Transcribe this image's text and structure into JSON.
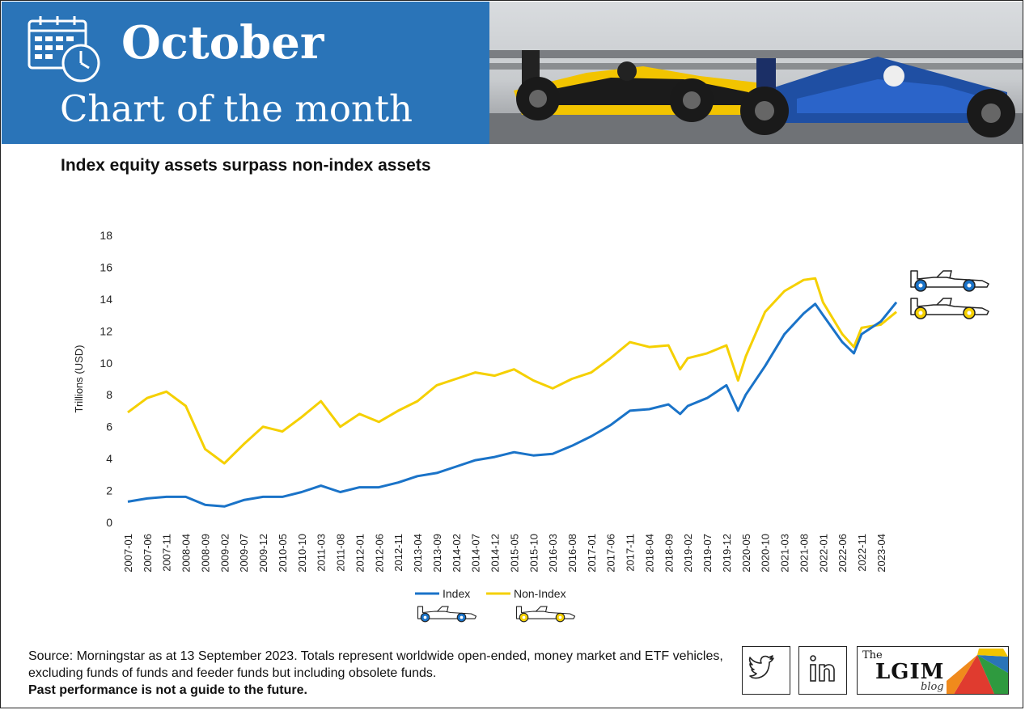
{
  "header": {
    "month": "October",
    "subtitle": "Chart of the month"
  },
  "chart_title": "Index equity assets surpass non-index assets",
  "chart_data": {
    "type": "line",
    "title": "Index equity assets surpass non-index assets",
    "xlabel": "",
    "ylabel": "Trillions (USD)",
    "ylim": [
      0,
      18
    ],
    "yticks": [
      0,
      2,
      4,
      6,
      8,
      10,
      12,
      14,
      16,
      18
    ],
    "x_start": "2007-01",
    "x_end": "2023-08",
    "xtick_labels": [
      "2007-01",
      "2007-06",
      "2007-11",
      "2008-04",
      "2008-09",
      "2009-02",
      "2009-07",
      "2009-12",
      "2010-05",
      "2010-10",
      "2011-03",
      "2011-08",
      "2012-01",
      "2012-06",
      "2012-11",
      "2013-04",
      "2013-09",
      "2014-02",
      "2014-07",
      "2014-12",
      "2015-05",
      "2015-10",
      "2016-03",
      "2016-08",
      "2017-01",
      "2017-06",
      "2017-11",
      "2018-04",
      "2018-09",
      "2019-02",
      "2019-07",
      "2019-12",
      "2020-05",
      "2020-10",
      "2021-03",
      "2021-08",
      "2022-01",
      "2022-06",
      "2022-11",
      "2023-04"
    ],
    "grid": false,
    "legend_position": "bottom",
    "series": [
      {
        "name": "Index",
        "color": "#1a73c8",
        "points": [
          [
            "2007-01",
            1.3
          ],
          [
            "2007-06",
            1.5
          ],
          [
            "2007-11",
            1.6
          ],
          [
            "2008-04",
            1.6
          ],
          [
            "2008-09",
            1.1
          ],
          [
            "2009-02",
            1.0
          ],
          [
            "2009-07",
            1.4
          ],
          [
            "2009-12",
            1.6
          ],
          [
            "2010-05",
            1.6
          ],
          [
            "2010-10",
            1.9
          ],
          [
            "2011-03",
            2.3
          ],
          [
            "2011-08",
            1.9
          ],
          [
            "2012-01",
            2.2
          ],
          [
            "2012-06",
            2.2
          ],
          [
            "2012-11",
            2.5
          ],
          [
            "2013-04",
            2.9
          ],
          [
            "2013-09",
            3.1
          ],
          [
            "2014-02",
            3.5
          ],
          [
            "2014-07",
            3.9
          ],
          [
            "2014-12",
            4.1
          ],
          [
            "2015-05",
            4.4
          ],
          [
            "2015-10",
            4.2
          ],
          [
            "2016-03",
            4.3
          ],
          [
            "2016-08",
            4.8
          ],
          [
            "2017-01",
            5.4
          ],
          [
            "2017-06",
            6.1
          ],
          [
            "2017-11",
            7.0
          ],
          [
            "2018-04",
            7.1
          ],
          [
            "2018-09",
            7.4
          ],
          [
            "2018-12",
            6.8
          ],
          [
            "2019-02",
            7.3
          ],
          [
            "2019-07",
            7.8
          ],
          [
            "2019-12",
            8.6
          ],
          [
            "2020-03",
            7.0
          ],
          [
            "2020-05",
            8.0
          ],
          [
            "2020-10",
            9.8
          ],
          [
            "2021-03",
            11.8
          ],
          [
            "2021-08",
            13.1
          ],
          [
            "2021-11",
            13.7
          ],
          [
            "2022-01",
            13.0
          ],
          [
            "2022-06",
            11.3
          ],
          [
            "2022-09",
            10.6
          ],
          [
            "2022-11",
            11.8
          ],
          [
            "2023-04",
            12.6
          ],
          [
            "2023-08",
            13.8
          ]
        ]
      },
      {
        "name": "Non-Index",
        "color": "#f5d000",
        "points": [
          [
            "2007-01",
            6.9
          ],
          [
            "2007-06",
            7.8
          ],
          [
            "2007-11",
            8.2
          ],
          [
            "2008-04",
            7.3
          ],
          [
            "2008-09",
            4.6
          ],
          [
            "2009-02",
            3.7
          ],
          [
            "2009-07",
            4.9
          ],
          [
            "2009-12",
            6.0
          ],
          [
            "2010-05",
            5.7
          ],
          [
            "2010-10",
            6.6
          ],
          [
            "2011-03",
            7.6
          ],
          [
            "2011-08",
            6.0
          ],
          [
            "2012-01",
            6.8
          ],
          [
            "2012-06",
            6.3
          ],
          [
            "2012-11",
            7.0
          ],
          [
            "2013-04",
            7.6
          ],
          [
            "2013-09",
            8.6
          ],
          [
            "2014-02",
            9.0
          ],
          [
            "2014-07",
            9.4
          ],
          [
            "2014-12",
            9.2
          ],
          [
            "2015-05",
            9.6
          ],
          [
            "2015-10",
            8.9
          ],
          [
            "2016-03",
            8.4
          ],
          [
            "2016-08",
            9.0
          ],
          [
            "2017-01",
            9.4
          ],
          [
            "2017-06",
            10.3
          ],
          [
            "2017-11",
            11.3
          ],
          [
            "2018-04",
            11.0
          ],
          [
            "2018-09",
            11.1
          ],
          [
            "2018-12",
            9.6
          ],
          [
            "2019-02",
            10.3
          ],
          [
            "2019-07",
            10.6
          ],
          [
            "2019-12",
            11.1
          ],
          [
            "2020-03",
            8.9
          ],
          [
            "2020-05",
            10.4
          ],
          [
            "2020-10",
            13.2
          ],
          [
            "2021-03",
            14.5
          ],
          [
            "2021-08",
            15.2
          ],
          [
            "2021-11",
            15.3
          ],
          [
            "2022-01",
            13.8
          ],
          [
            "2022-06",
            11.8
          ],
          [
            "2022-09",
            11.0
          ],
          [
            "2022-11",
            12.2
          ],
          [
            "2023-04",
            12.4
          ],
          [
            "2023-08",
            13.2
          ]
        ]
      }
    ]
  },
  "source_text": "Source: Morningstar as at 13 September 2023. Totals represent worldwide open-ended, money market and ETF vehicles, excluding funds of funds and feeder funds but including obsolete funds.",
  "disclaimer": "Past performance is not a guide to the future.",
  "logo": {
    "the": "The",
    "name": "LGIM",
    "blog": "blog"
  },
  "icons": {
    "calendar": "calendar-clock-icon",
    "twitter": "twitter-icon",
    "linkedin": "linkedin-icon"
  }
}
